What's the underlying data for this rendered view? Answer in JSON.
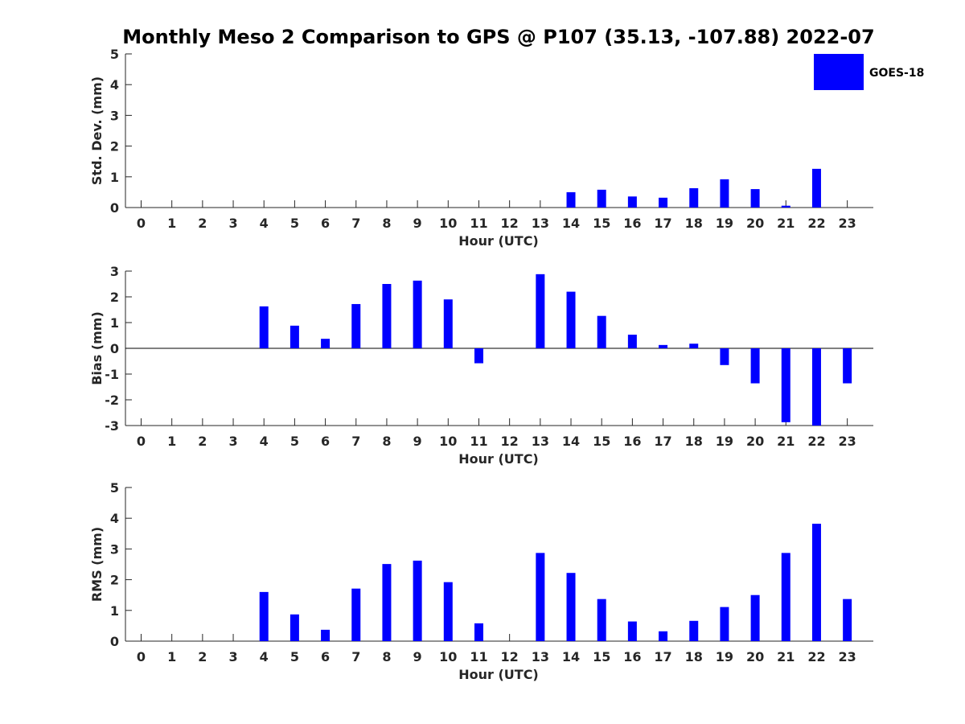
{
  "title": "Monthly Meso 2 Comparison to GPS @ P107 (35.13, -107.88) 2022-07",
  "legend": {
    "label": "GOES-18",
    "color": "#0000ff"
  },
  "bar_color": "#0000ff",
  "chart_data": [
    {
      "type": "bar",
      "name": "std-dev",
      "title": "Monthly Meso 2 Comparison to GPS @ P107 (35.13, -107.88) 2022-07",
      "xlabel": "Hour (UTC)",
      "ylabel": "Std. Dev. (mm)",
      "ylim": [
        0,
        5
      ],
      "yticks": [
        0,
        1,
        2,
        3,
        4,
        5
      ],
      "categories": [
        "0",
        "1",
        "2",
        "3",
        "4",
        "5",
        "6",
        "7",
        "8",
        "9",
        "10",
        "11",
        "12",
        "13",
        "14",
        "15",
        "16",
        "17",
        "18",
        "19",
        "20",
        "21",
        "22",
        "23"
      ],
      "series": [
        {
          "name": "GOES-18",
          "values": [
            0,
            0,
            0,
            0,
            0,
            0,
            0,
            0,
            0,
            0,
            0,
            0,
            0,
            0,
            0.5,
            0.58,
            0.36,
            0.32,
            0.63,
            0.92,
            0.6,
            0.06,
            1.26,
            0
          ]
        }
      ]
    },
    {
      "type": "bar",
      "name": "bias",
      "xlabel": "Hour (UTC)",
      "ylabel": "Bias (mm)",
      "ylim": [
        -3,
        3
      ],
      "yticks": [
        -3,
        -2,
        -1,
        0,
        1,
        2,
        3
      ],
      "categories": [
        "0",
        "1",
        "2",
        "3",
        "4",
        "5",
        "6",
        "7",
        "8",
        "9",
        "10",
        "11",
        "12",
        "13",
        "14",
        "15",
        "16",
        "17",
        "18",
        "19",
        "20",
        "21",
        "22",
        "23"
      ],
      "series": [
        {
          "name": "GOES-18",
          "values": [
            0,
            0,
            0,
            0,
            1.63,
            0.88,
            0.37,
            1.72,
            2.5,
            2.63,
            1.9,
            -0.58,
            0,
            2.88,
            2.2,
            1.26,
            0.53,
            0.13,
            0.18,
            -0.65,
            -1.36,
            -2.87,
            -3.0,
            -1.36
          ]
        }
      ]
    },
    {
      "type": "bar",
      "name": "rms",
      "xlabel": "Hour (UTC)",
      "ylabel": "RMS (mm)",
      "ylim": [
        0,
        5
      ],
      "yticks": [
        0,
        1,
        2,
        3,
        4,
        5
      ],
      "categories": [
        "0",
        "1",
        "2",
        "3",
        "4",
        "5",
        "6",
        "7",
        "8",
        "9",
        "10",
        "11",
        "12",
        "13",
        "14",
        "15",
        "16",
        "17",
        "18",
        "19",
        "20",
        "21",
        "22",
        "23"
      ],
      "series": [
        {
          "name": "GOES-18",
          "values": [
            0,
            0,
            0,
            0,
            1.6,
            0.87,
            0.37,
            1.71,
            2.51,
            2.62,
            1.92,
            0.58,
            0,
            2.87,
            2.22,
            1.37,
            0.64,
            0.32,
            0.66,
            1.11,
            1.5,
            2.87,
            3.82,
            1.37
          ]
        }
      ]
    }
  ]
}
